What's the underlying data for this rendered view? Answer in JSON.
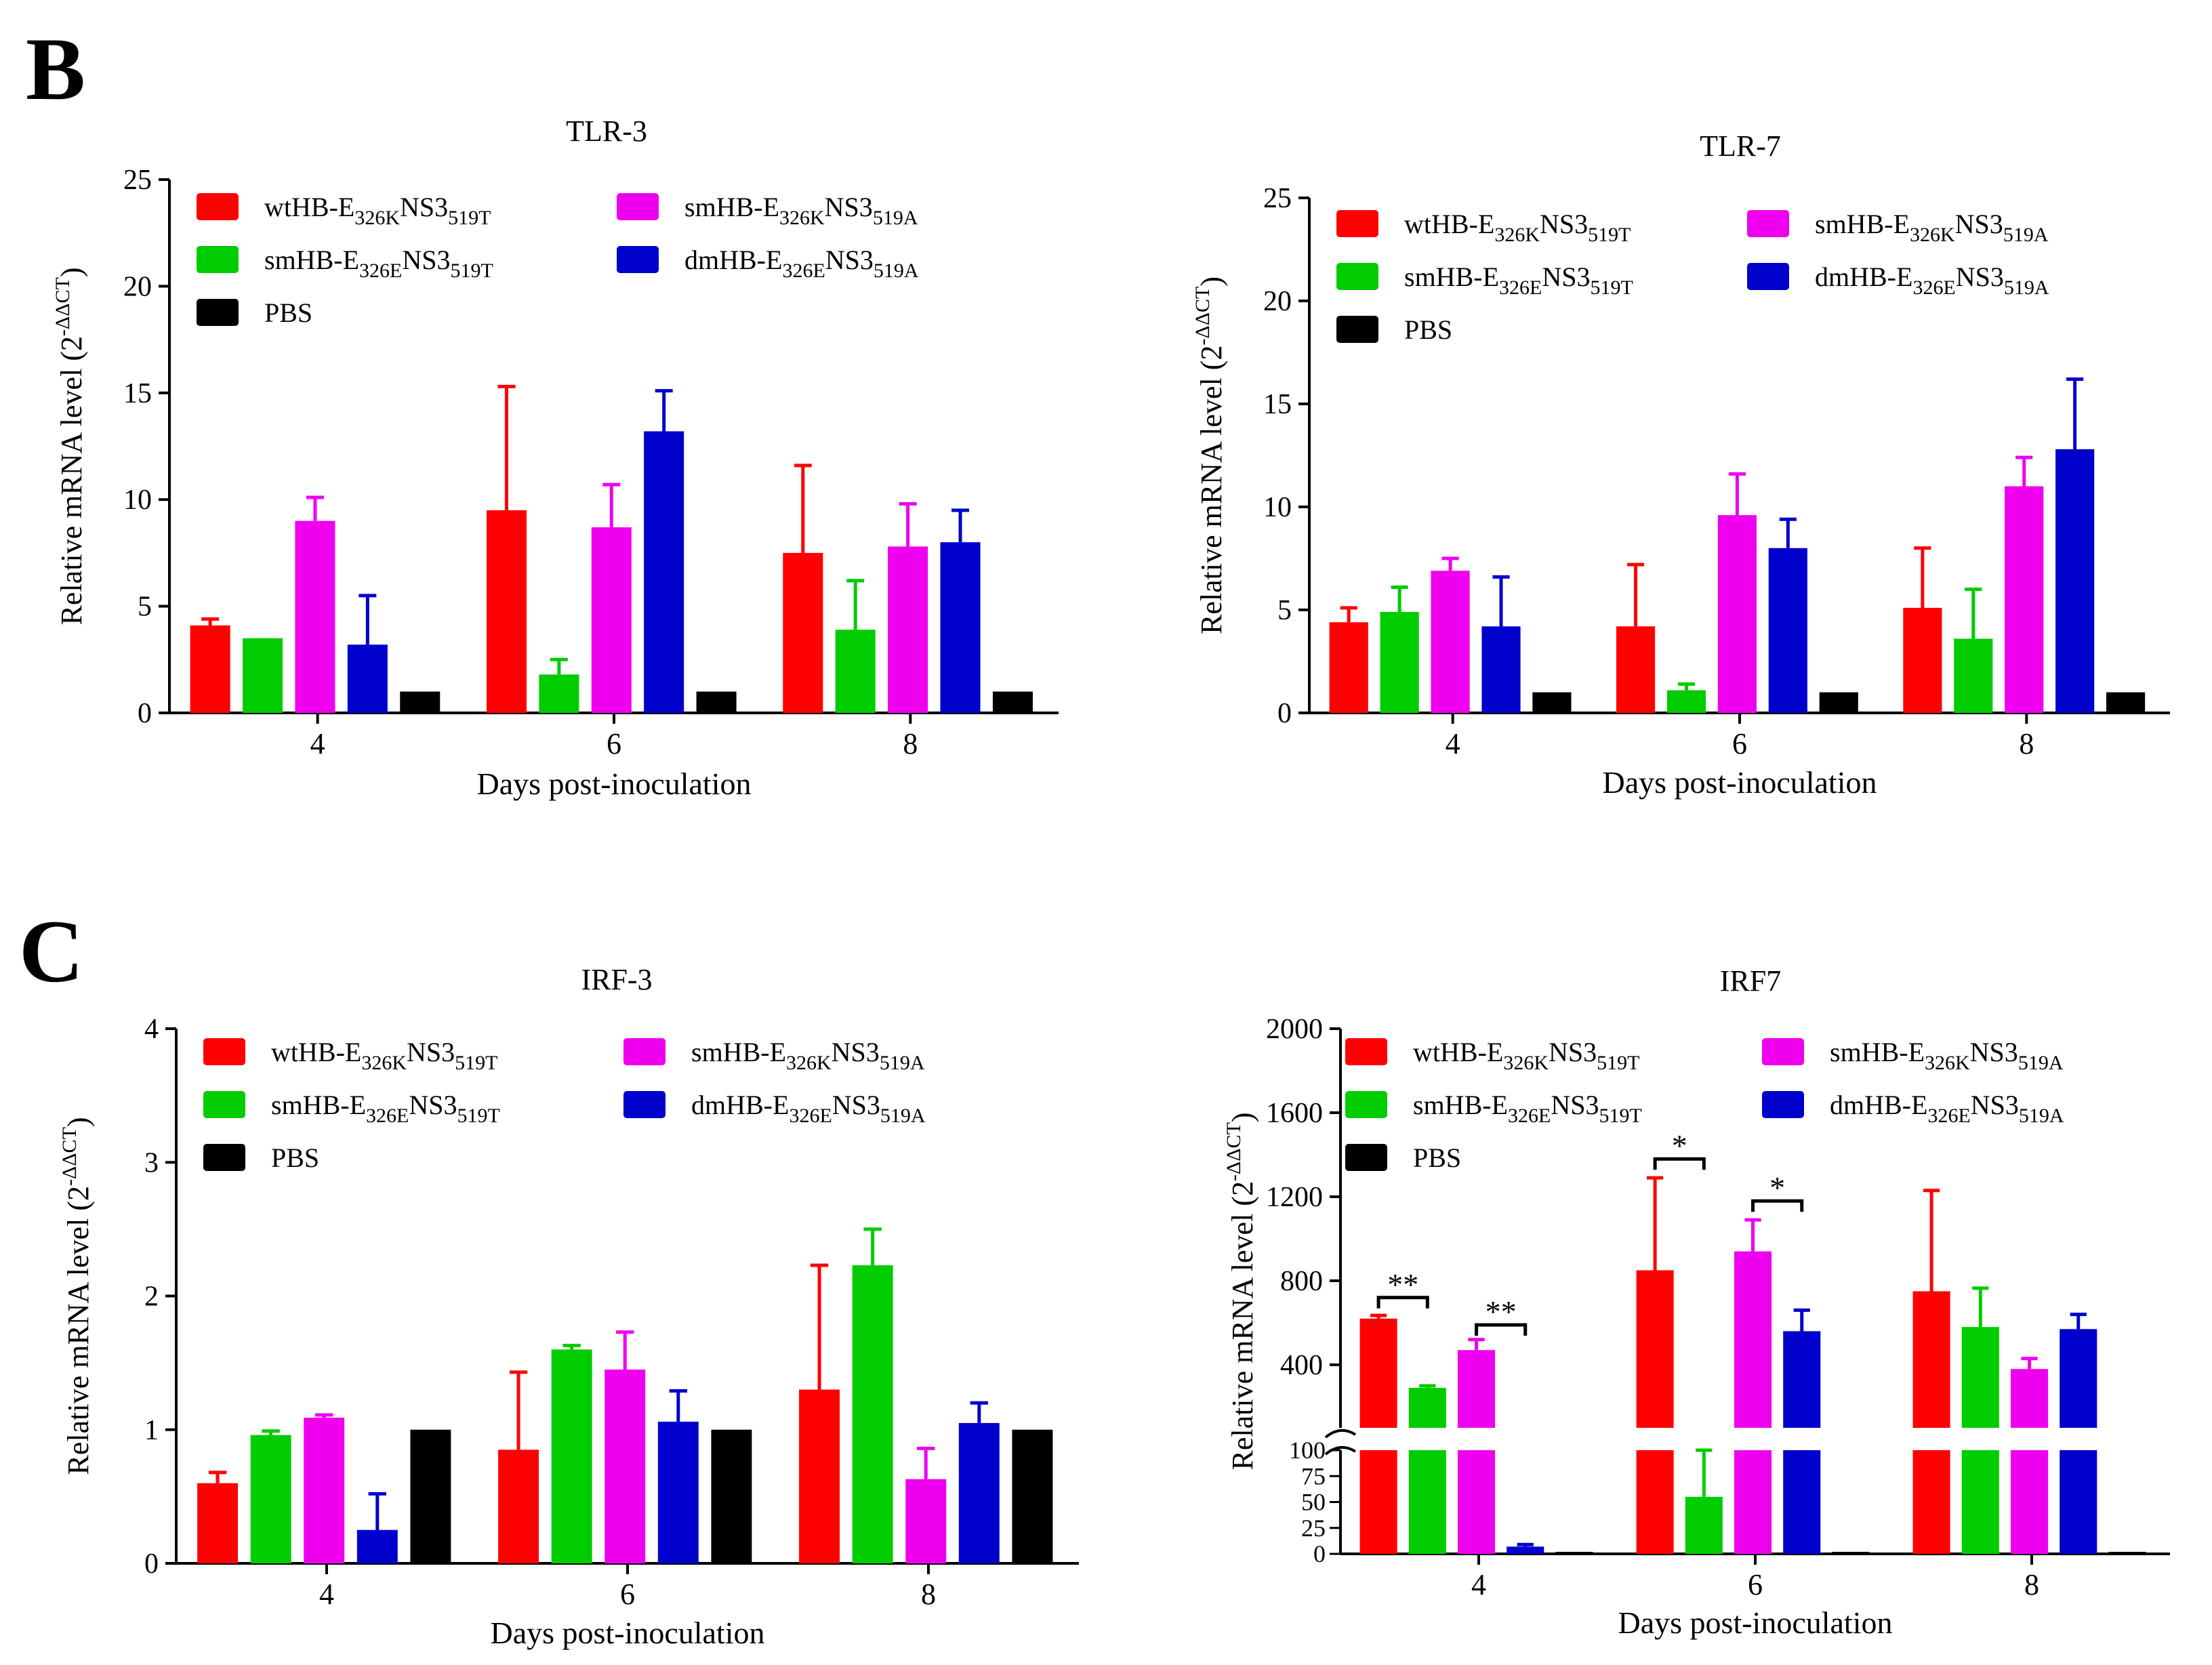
{
  "panels": [
    {
      "letter": "B"
    },
    {
      "letter": "C"
    }
  ],
  "colors": {
    "wt": "#ff0000",
    "smE": "#00cc00",
    "smA": "#ee00ee",
    "dm": "#0000cc",
    "pbs": "#000000"
  },
  "legend": [
    {
      "key": "wt",
      "parts": [
        [
          "wtHB-E",
          "n"
        ],
        [
          "326K",
          "s"
        ],
        [
          "NS3",
          "n"
        ],
        [
          "519T",
          "s"
        ]
      ]
    },
    {
      "key": "smE",
      "parts": [
        [
          "smHB-E",
          "n"
        ],
        [
          "326E",
          "s"
        ],
        [
          "NS3",
          "n"
        ],
        [
          "519T",
          "s"
        ]
      ]
    },
    {
      "key": "pbs",
      "parts": [
        [
          "PBS",
          "n"
        ]
      ]
    },
    {
      "key": "smA",
      "parts": [
        [
          "smHB-E",
          "n"
        ],
        [
          "326K",
          "s"
        ],
        [
          "NS3",
          "n"
        ],
        [
          "519A",
          "s"
        ]
      ]
    },
    {
      "key": "dm",
      "parts": [
        [
          "dmHB-E",
          "n"
        ],
        [
          "326E",
          "s"
        ],
        [
          "NS3",
          "n"
        ],
        [
          "519A",
          "s"
        ]
      ]
    }
  ],
  "chart_data": [
    {
      "type": "bar",
      "title": "TLR-3",
      "xlabel": "Days post-inoculation",
      "ylabel": "Relative mRNA level (2",
      "ylabel_sup": "-ΔΔCT",
      "ylabel_close": ")",
      "categories": [
        "4",
        "6",
        "8"
      ],
      "ylim": [
        0,
        25
      ],
      "yticks": [
        "0",
        "5",
        "10",
        "15",
        "20",
        "25"
      ],
      "series": [
        {
          "key": "wt",
          "name": "wtHB-E326KNS3519T",
          "values": [
            4.1,
            9.5,
            7.5
          ],
          "errors": [
            0.3,
            5.8,
            4.1
          ]
        },
        {
          "key": "smE",
          "name": "smHB-E326ENS3519T",
          "values": [
            3.5,
            1.8,
            3.9
          ],
          "errors": [
            0.0,
            0.7,
            2.3
          ]
        },
        {
          "key": "smA",
          "name": "smHB-E326KNS3519A",
          "values": [
            9.0,
            8.7,
            7.8
          ],
          "errors": [
            1.1,
            2.0,
            2.0
          ]
        },
        {
          "key": "dm",
          "name": "dmHB-E326ENS3519A",
          "values": [
            3.2,
            13.2,
            8.0
          ],
          "errors": [
            2.3,
            1.9,
            1.5
          ]
        },
        {
          "key": "pbs",
          "name": "PBS",
          "values": [
            1.0,
            1.0,
            1.0
          ],
          "errors": [
            0,
            0,
            0
          ]
        }
      ]
    },
    {
      "type": "bar",
      "title": "TLR-7",
      "xlabel": "Days post-inoculation",
      "ylabel": "Relative mRNA level (2",
      "ylabel_sup": "-ΔΔCT",
      "ylabel_close": ")",
      "categories": [
        "4",
        "6",
        "8"
      ],
      "ylim": [
        0,
        25
      ],
      "yticks": [
        "0",
        "5",
        "10",
        "15",
        "20",
        "25"
      ],
      "series": [
        {
          "key": "wt",
          "name": "wtHB-E326KNS3519T",
          "values": [
            4.4,
            4.2,
            5.1
          ],
          "errors": [
            0.7,
            3.0,
            2.9
          ]
        },
        {
          "key": "smE",
          "name": "smHB-E326ENS3519T",
          "values": [
            4.9,
            1.1,
            3.6
          ],
          "errors": [
            1.2,
            0.3,
            2.4
          ]
        },
        {
          "key": "smA",
          "name": "smHB-E326KNS3519A",
          "values": [
            6.9,
            9.6,
            11.0
          ],
          "errors": [
            0.6,
            2.0,
            1.4
          ]
        },
        {
          "key": "dm",
          "name": "dmHB-E326ENS3519A",
          "values": [
            4.2,
            8.0,
            12.8
          ],
          "errors": [
            2.4,
            1.4,
            3.4
          ]
        },
        {
          "key": "pbs",
          "name": "PBS",
          "values": [
            1.0,
            1.0,
            1.0
          ],
          "errors": [
            0,
            0,
            0
          ]
        }
      ]
    },
    {
      "type": "bar",
      "title": "IRF-3",
      "xlabel": "Days post-inoculation",
      "ylabel": "Relative mRNA level (2",
      "ylabel_sup": "-ΔΔCT",
      "ylabel_close": ")",
      "categories": [
        "4",
        "6",
        "8"
      ],
      "ylim": [
        0,
        4
      ],
      "yticks": [
        "0",
        "1",
        "2",
        "3",
        "4"
      ],
      "series": [
        {
          "key": "wt",
          "name": "wtHB-E326KNS3519T",
          "values": [
            0.6,
            0.85,
            1.3
          ],
          "errors": [
            0.08,
            0.58,
            0.93
          ]
        },
        {
          "key": "smE",
          "name": "smHB-E326ENS3519T",
          "values": [
            0.96,
            1.6,
            2.23
          ],
          "errors": [
            0.03,
            0.03,
            0.27
          ]
        },
        {
          "key": "smA",
          "name": "smHB-E326KNS3519A",
          "values": [
            1.09,
            1.45,
            0.63
          ],
          "errors": [
            0.02,
            0.28,
            0.23
          ]
        },
        {
          "key": "dm",
          "name": "dmHB-E326ENS3519A",
          "values": [
            0.25,
            1.06,
            1.05
          ],
          "errors": [
            0.27,
            0.23,
            0.15
          ]
        },
        {
          "key": "pbs",
          "name": "PBS",
          "values": [
            1.0,
            1.0,
            1.0
          ],
          "errors": [
            0,
            0,
            0
          ]
        }
      ]
    },
    {
      "type": "bar",
      "title": "IRF7",
      "xlabel": "Days post-inoculation",
      "ylabel": "Relative mRNA level (2",
      "ylabel_sup": "-ΔΔCT",
      "ylabel_close": ")",
      "categories": [
        "4",
        "6",
        "8"
      ],
      "axis_break": true,
      "lower_ylim": [
        0,
        100
      ],
      "lower_yticks": [
        "0",
        "25",
        "50",
        "75",
        "100"
      ],
      "upper_ylim": [
        100,
        2000
      ],
      "upper_yticks": [
        "400",
        "800",
        "1200",
        "1600",
        "2000"
      ],
      "series": [
        {
          "key": "wt",
          "name": "wtHB-E326KNS3519T",
          "values": [
            620,
            850,
            750
          ],
          "errors": [
            15,
            440,
            480
          ]
        },
        {
          "key": "smE",
          "name": "smHB-E326ENS3519T",
          "values": [
            290,
            55,
            580
          ],
          "errors": [
            10,
            45,
            185
          ]
        },
        {
          "key": "smA",
          "name": "smHB-E326KNS3519A",
          "values": [
            470,
            940,
            380
          ],
          "errors": [
            50,
            150,
            50
          ]
        },
        {
          "key": "dm",
          "name": "dmHB-E326ENS3519A",
          "values": [
            7,
            560,
            570
          ],
          "errors": [
            2,
            100,
            70
          ]
        },
        {
          "key": "pbs",
          "name": "PBS",
          "values": [
            1,
            1,
            1
          ],
          "errors": [
            0,
            0,
            0
          ]
        }
      ],
      "significance": [
        {
          "label": "**",
          "group": 0,
          "from": 0,
          "to": 1,
          "value": 720
        },
        {
          "label": "**",
          "group": 0,
          "from": 2,
          "to": 3,
          "value": 590
        },
        {
          "label": "*",
          "group": 1,
          "from": 0,
          "to": 1,
          "value": 1380
        },
        {
          "label": "*",
          "group": 1,
          "from": 2,
          "to": 3,
          "value": 1180
        }
      ]
    }
  ]
}
